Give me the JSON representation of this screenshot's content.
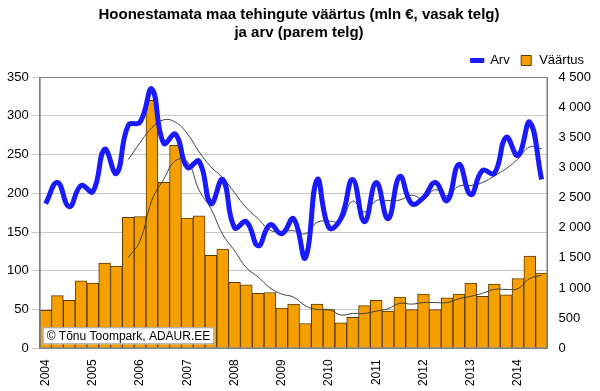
{
  "chart_data": {
    "type": "bar",
    "title": [
      "Hoonestamata maa tehingute väärtus (mln €, vasak telg)",
      "ja arv (parem telg)"
    ],
    "annotations": [
      "© Tõnu Toompark, ADAUR.EE"
    ],
    "categories": [
      "2004",
      null,
      null,
      null,
      "2005",
      null,
      null,
      null,
      "2006",
      null,
      null,
      null,
      "2007",
      null,
      null,
      null,
      "2008",
      null,
      null,
      null,
      "2009",
      null,
      null,
      null,
      "2010",
      null,
      null,
      null,
      "2011",
      null,
      null,
      null,
      "2012",
      null,
      null,
      null,
      "2013",
      null,
      null,
      null,
      "2014",
      null,
      null
    ],
    "series": [
      {
        "name": "Väärtus",
        "type": "bar",
        "color": "#f5a000",
        "values": [
          49,
          68,
          62,
          87,
          84,
          110,
          106,
          169,
          170,
          320,
          214,
          262,
          168,
          171,
          120,
          128,
          85,
          82,
          71,
          72,
          52,
          57,
          32,
          57,
          50,
          33,
          40,
          55,
          62,
          48,
          66,
          50,
          70,
          50,
          65,
          70,
          84,
          67,
          83,
          69,
          90,
          119,
          97
        ]
      },
      {
        "name": "Arv",
        "type": "line",
        "axis": "y2",
        "color": "#1a1aff",
        "marker": "none",
        "line_style": "solid",
        "values": [
          2400,
          2750,
          2350,
          2700,
          2600,
          3300,
          2900,
          3700,
          3750,
          4300,
          3400,
          3550,
          3000,
          3100,
          2400,
          2800,
          2000,
          2100,
          1700,
          2050,
          1900,
          2150,
          1500,
          2800,
          2000,
          2150,
          2800,
          2100,
          2750,
          2150,
          2850,
          2400,
          2500,
          2750,
          2450,
          3050,
          2550,
          2950,
          2900,
          3500,
          3200,
          3750,
          2800
        ]
      },
      {
        "type": "line",
        "color": "#404040",
        "marker": "none",
        "line_style": "solid",
        "values": [
          null,
          null,
          null,
          null,
          null,
          null,
          null,
          117,
          139,
          191,
          218,
          242,
          241,
          204,
          180,
          147,
          126,
          104,
          92,
          78,
          70,
          66,
          55,
          50,
          50,
          43,
          45,
          45,
          48,
          51,
          58,
          57,
          59,
          59,
          59,
          64,
          67,
          71,
          76,
          76,
          77,
          90,
          94
        ]
      },
      {
        "type": "line",
        "axis": "y2",
        "color": "#404040",
        "marker": "none",
        "line_style": "solid",
        "values": [
          null,
          null,
          null,
          null,
          null,
          null,
          null,
          3130,
          3410,
          3660,
          3790,
          3750,
          3560,
          3260,
          3010,
          2830,
          2580,
          2330,
          2150,
          1960,
          1940,
          1950,
          1900,
          2090,
          2110,
          2110,
          2440,
          2260,
          2450,
          2450,
          2460,
          2540,
          2480,
          2630,
          2530,
          2690,
          2700,
          2750,
          2860,
          2980,
          3140,
          3340,
          3310
        ]
      }
    ],
    "ylim": [
      0,
      350
    ],
    "yticks": [
      0,
      50,
      100,
      150,
      200,
      250,
      300,
      350
    ],
    "y2lim": [
      0,
      4500
    ],
    "y2ticks": [
      0,
      500,
      {
        "value": 1000,
        "label": "1 000"
      },
      {
        "value": 1500,
        "label": "1 500"
      },
      {
        "value": 2000,
        "label": "2 000"
      },
      {
        "value": 2500,
        "label": "2 500"
      },
      {
        "value": 3000,
        "label": "3 000"
      },
      {
        "value": 3500,
        "label": "3 500"
      },
      {
        "value": 4000,
        "label": "4 000"
      },
      {
        "value": 4500,
        "label": "4 500"
      }
    ],
    "grid": true,
    "legend": "top-right"
  }
}
